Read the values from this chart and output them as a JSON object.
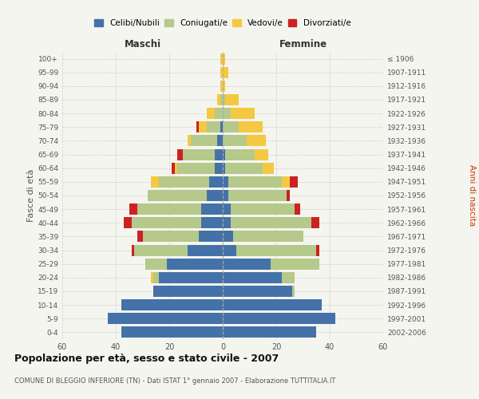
{
  "age_groups": [
    "0-4",
    "5-9",
    "10-14",
    "15-19",
    "20-24",
    "25-29",
    "30-34",
    "35-39",
    "40-44",
    "45-49",
    "50-54",
    "55-59",
    "60-64",
    "65-69",
    "70-74",
    "75-79",
    "80-84",
    "85-89",
    "90-94",
    "95-99",
    "100+"
  ],
  "birth_years": [
    "2002-2006",
    "1997-2001",
    "1992-1996",
    "1987-1991",
    "1982-1986",
    "1977-1981",
    "1972-1976",
    "1967-1971",
    "1962-1966",
    "1957-1961",
    "1952-1956",
    "1947-1951",
    "1942-1946",
    "1937-1941",
    "1932-1936",
    "1927-1931",
    "1922-1926",
    "1917-1921",
    "1912-1916",
    "1907-1911",
    "≤ 1906"
  ],
  "maschi": {
    "celibe": [
      38,
      43,
      38,
      26,
      24,
      21,
      13,
      9,
      8,
      8,
      6,
      5,
      3,
      3,
      2,
      1,
      0,
      0,
      0,
      0,
      0
    ],
    "coniugato": [
      0,
      0,
      0,
      0,
      2,
      8,
      20,
      21,
      26,
      24,
      22,
      19,
      14,
      12,
      10,
      5,
      3,
      1,
      0,
      0,
      0
    ],
    "vedovo": [
      0,
      0,
      0,
      0,
      1,
      0,
      0,
      0,
      0,
      0,
      0,
      3,
      1,
      0,
      1,
      3,
      3,
      1,
      1,
      1,
      1
    ],
    "divorziato": [
      0,
      0,
      0,
      0,
      0,
      0,
      1,
      2,
      3,
      3,
      0,
      0,
      1,
      2,
      0,
      1,
      0,
      0,
      0,
      0,
      0
    ]
  },
  "femmine": {
    "nubile": [
      35,
      42,
      37,
      26,
      22,
      18,
      5,
      4,
      3,
      3,
      2,
      2,
      1,
      1,
      0,
      0,
      0,
      0,
      0,
      0,
      0
    ],
    "coniugata": [
      0,
      0,
      0,
      1,
      5,
      18,
      30,
      26,
      30,
      24,
      22,
      20,
      14,
      11,
      9,
      6,
      3,
      1,
      0,
      0,
      0
    ],
    "vedova": [
      0,
      0,
      0,
      0,
      0,
      0,
      0,
      0,
      0,
      0,
      0,
      3,
      4,
      5,
      7,
      9,
      9,
      5,
      1,
      2,
      1
    ],
    "divorziata": [
      0,
      0,
      0,
      0,
      0,
      0,
      1,
      0,
      3,
      2,
      1,
      3,
      0,
      0,
      0,
      0,
      0,
      0,
      0,
      0,
      0
    ]
  },
  "colors": {
    "celibe": "#4472a8",
    "coniugato": "#b5c98a",
    "vedovo": "#f5c842",
    "divorziato": "#cc2222"
  },
  "xlim": 60,
  "title": "Popolazione per età, sesso e stato civile - 2007",
  "subtitle": "COMUNE DI BLEGGIO INFERIORE (TN) - Dati ISTAT 1° gennaio 2007 - Elaborazione TUTTITALIA.IT",
  "ylabel_left": "Fasce di età",
  "ylabel_right": "Anni di nascita",
  "legend_labels": [
    "Celibi/Nubili",
    "Coniugati/e",
    "Vedovi/e",
    "Divorziati/e"
  ],
  "background_color": "#f5f5f0",
  "grid_color": "#cccccc",
  "maschi_label": "Maschi",
  "femmine_label": "Femmine"
}
